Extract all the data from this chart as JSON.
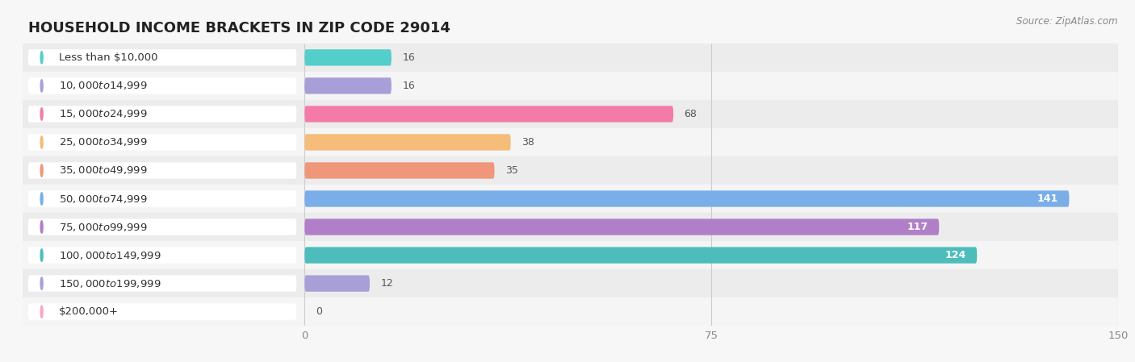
{
  "title": "HOUSEHOLD INCOME BRACKETS IN ZIP CODE 29014",
  "source": "Source: ZipAtlas.com",
  "categories": [
    "Less than $10,000",
    "$10,000 to $14,999",
    "$15,000 to $24,999",
    "$25,000 to $34,999",
    "$35,000 to $49,999",
    "$50,000 to $74,999",
    "$75,000 to $99,999",
    "$100,000 to $149,999",
    "$150,000 to $199,999",
    "$200,000+"
  ],
  "values": [
    16,
    16,
    68,
    38,
    35,
    141,
    117,
    124,
    12,
    0
  ],
  "bar_colors": [
    "#54CECA",
    "#A89FD8",
    "#F47BA8",
    "#F5BC7A",
    "#F0967A",
    "#7AAEE8",
    "#B07FC8",
    "#4DBDBC",
    "#A89FD8",
    "#F5A8C8"
  ],
  "xlim": [
    0,
    150
  ],
  "xticks": [
    0,
    75,
    150
  ],
  "title_fontsize": 13,
  "label_fontsize": 9.5,
  "value_fontsize": 9,
  "bar_height": 0.58
}
